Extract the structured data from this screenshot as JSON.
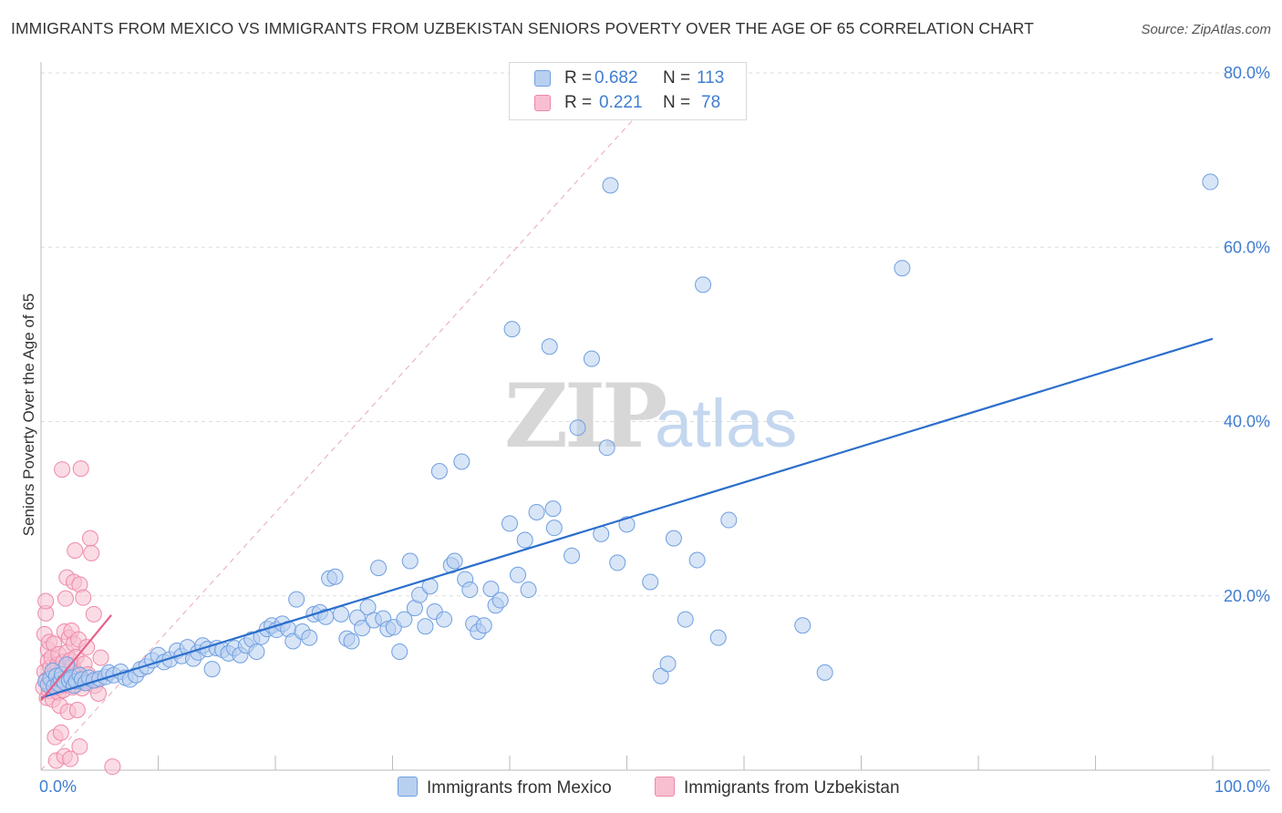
{
  "header": {
    "title": "IMMIGRANTS FROM MEXICO VS IMMIGRANTS FROM UZBEKISTAN SENIORS POVERTY OVER THE AGE OF 65 CORRELATION CHART",
    "source": "Source: ZipAtlas.com"
  },
  "legend": {
    "r_label": "R =",
    "n_label": "N =",
    "mexico": {
      "r": "0.682",
      "n": "113",
      "name": "Immigrants from Mexico"
    },
    "uzbekistan": {
      "r": "0.221",
      "n": "78",
      "name": "Immigrants from Uzbekistan"
    }
  },
  "watermark": {
    "zip": "ZIP",
    "atlas": "atlas"
  },
  "colors": {
    "mexico_fill": "#b8d0f0",
    "mexico_stroke": "#6f9fe0",
    "mexico_line": "#2c6fcc",
    "uzbek_fill": "#f8bfd0",
    "uzbek_stroke": "#ee8aaa",
    "uzbek_line": "#e8608a",
    "tick_label": "#3f7dd1",
    "grid": "#dddddd"
  },
  "chart_data": {
    "type": "scatter",
    "xlabel": "",
    "ylabel": "Seniors Poverty Over the Age of 65",
    "xlim": [
      0,
      100
    ],
    "ylim": [
      0,
      80
    ],
    "x_tick_labels": [
      "0.0%",
      "100.0%"
    ],
    "y_ticks": [
      20,
      40,
      60,
      80
    ],
    "y_tick_labels": [
      "20.0%",
      "40.0%",
      "60.0%",
      "80.0%"
    ],
    "grid": true,
    "series": [
      {
        "name": "Immigrants from Mexico",
        "trend": {
          "x": [
            0,
            100
          ],
          "y": [
            8.3,
            49.5
          ]
        },
        "points": [
          [
            0.4,
            10.2
          ],
          [
            0.6,
            9.8
          ],
          [
            0.8,
            10.5
          ],
          [
            1.0,
            11.4
          ],
          [
            1.1,
            9.6
          ],
          [
            1.3,
            10.8
          ],
          [
            1.5,
            9.9
          ],
          [
            1.7,
            10.4
          ],
          [
            1.8,
            11.0
          ],
          [
            2.0,
            10.1
          ],
          [
            2.2,
            12.1
          ],
          [
            2.4,
            10.3
          ],
          [
            2.6,
            10.6
          ],
          [
            2.8,
            9.7
          ],
          [
            3.0,
            10.2
          ],
          [
            3.3,
            10.9
          ],
          [
            3.5,
            10.4
          ],
          [
            3.8,
            10.0
          ],
          [
            4.1,
            10.6
          ],
          [
            4.5,
            10.3
          ],
          [
            5.0,
            10.5
          ],
          [
            5.5,
            10.7
          ],
          [
            5.8,
            11.2
          ],
          [
            6.2,
            10.9
          ],
          [
            6.8,
            11.3
          ],
          [
            7.2,
            10.6
          ],
          [
            7.6,
            10.4
          ],
          [
            8.1,
            10.9
          ],
          [
            8.5,
            11.6
          ],
          [
            9.0,
            11.9
          ],
          [
            9.5,
            12.6
          ],
          [
            10.0,
            13.2
          ],
          [
            10.5,
            12.4
          ],
          [
            11.0,
            12.7
          ],
          [
            11.6,
            13.7
          ],
          [
            12.0,
            13.1
          ],
          [
            12.5,
            14.1
          ],
          [
            13.0,
            12.8
          ],
          [
            13.4,
            13.5
          ],
          [
            13.8,
            14.3
          ],
          [
            14.2,
            13.9
          ],
          [
            14.6,
            11.6
          ],
          [
            15.0,
            14.0
          ],
          [
            15.5,
            13.8
          ],
          [
            16.0,
            13.4
          ],
          [
            16.5,
            14.0
          ],
          [
            17.0,
            13.2
          ],
          [
            17.5,
            14.3
          ],
          [
            18.0,
            15.0
          ],
          [
            18.4,
            13.6
          ],
          [
            18.8,
            15.3
          ],
          [
            19.3,
            16.2
          ],
          [
            19.7,
            16.6
          ],
          [
            20.1,
            16.1
          ],
          [
            20.6,
            16.8
          ],
          [
            21.1,
            16.2
          ],
          [
            21.5,
            14.8
          ],
          [
            21.8,
            19.6
          ],
          [
            22.3,
            15.9
          ],
          [
            22.9,
            15.2
          ],
          [
            23.3,
            17.9
          ],
          [
            23.8,
            18.1
          ],
          [
            24.3,
            17.6
          ],
          [
            24.6,
            22.0
          ],
          [
            25.1,
            22.2
          ],
          [
            25.6,
            17.9
          ],
          [
            26.1,
            15.1
          ],
          [
            26.5,
            14.8
          ],
          [
            27.0,
            17.5
          ],
          [
            27.4,
            16.3
          ],
          [
            27.9,
            18.7
          ],
          [
            28.4,
            17.2
          ],
          [
            28.8,
            23.2
          ],
          [
            29.2,
            17.4
          ],
          [
            29.6,
            16.2
          ],
          [
            30.1,
            16.4
          ],
          [
            30.6,
            13.6
          ],
          [
            31.0,
            17.3
          ],
          [
            31.5,
            24.0
          ],
          [
            31.9,
            18.6
          ],
          [
            32.3,
            20.1
          ],
          [
            32.8,
            16.5
          ],
          [
            33.2,
            21.1
          ],
          [
            33.6,
            18.2
          ],
          [
            34.0,
            34.3
          ],
          [
            34.4,
            17.3
          ],
          [
            35.0,
            23.5
          ],
          [
            35.3,
            24.0
          ],
          [
            35.9,
            35.4
          ],
          [
            36.2,
            21.9
          ],
          [
            36.6,
            20.7
          ],
          [
            36.9,
            16.8
          ],
          [
            37.3,
            15.9
          ],
          [
            37.8,
            16.6
          ],
          [
            38.4,
            20.8
          ],
          [
            38.8,
            18.9
          ],
          [
            39.2,
            19.5
          ],
          [
            40.0,
            28.3
          ],
          [
            40.2,
            50.6
          ],
          [
            40.7,
            22.4
          ],
          [
            41.3,
            26.4
          ],
          [
            41.6,
            20.7
          ],
          [
            42.3,
            29.6
          ],
          [
            43.4,
            48.6
          ],
          [
            43.7,
            30.0
          ],
          [
            43.8,
            27.8
          ],
          [
            45.3,
            24.6
          ],
          [
            45.8,
            39.3
          ],
          [
            47.0,
            47.2
          ],
          [
            47.8,
            27.1
          ],
          [
            48.3,
            37.0
          ],
          [
            48.6,
            67.1
          ],
          [
            49.2,
            23.8
          ],
          [
            50.0,
            28.2
          ],
          [
            52.0,
            21.6
          ],
          [
            52.9,
            10.8
          ],
          [
            53.5,
            12.2
          ],
          [
            54.0,
            26.6
          ],
          [
            55.0,
            17.3
          ],
          [
            56.0,
            24.1
          ],
          [
            56.5,
            55.7
          ],
          [
            57.8,
            15.2
          ],
          [
            58.7,
            28.7
          ],
          [
            65.0,
            16.6
          ],
          [
            66.9,
            11.2
          ],
          [
            73.5,
            57.6
          ],
          [
            99.8,
            67.5
          ]
        ]
      },
      {
        "name": "Immigrants from Uzbekistan",
        "trend": {
          "x": [
            0,
            6.0
          ],
          "y": [
            8.0,
            17.8
          ]
        },
        "points": [
          [
            0.2,
            9.5
          ],
          [
            0.3,
            11.3
          ],
          [
            0.3,
            15.6
          ],
          [
            0.4,
            18.0
          ],
          [
            0.4,
            19.4
          ],
          [
            0.5,
            8.3
          ],
          [
            0.5,
            10.4
          ],
          [
            0.6,
            12.5
          ],
          [
            0.6,
            13.8
          ],
          [
            0.7,
            9.1
          ],
          [
            0.7,
            14.7
          ],
          [
            0.8,
            11.8
          ],
          [
            0.8,
            9.7
          ],
          [
            0.9,
            10.6
          ],
          [
            0.9,
            12.9
          ],
          [
            1.0,
            9.9
          ],
          [
            1.0,
            8.1
          ],
          [
            1.1,
            14.5
          ],
          [
            1.1,
            10.9
          ],
          [
            1.2,
            11.6
          ],
          [
            1.2,
            3.8
          ],
          [
            1.3,
            1.1
          ],
          [
            1.3,
            9.4
          ],
          [
            1.4,
            12.1
          ],
          [
            1.4,
            10.3
          ],
          [
            1.5,
            8.9
          ],
          [
            1.5,
            13.3
          ],
          [
            1.6,
            9.6
          ],
          [
            1.6,
            7.4
          ],
          [
            1.7,
            4.3
          ],
          [
            1.7,
            10.1
          ],
          [
            1.8,
            34.5
          ],
          [
            1.8,
            11.4
          ],
          [
            1.9,
            12.4
          ],
          [
            1.9,
            9.2
          ],
          [
            2.0,
            1.6
          ],
          [
            2.0,
            15.9
          ],
          [
            2.1,
            19.7
          ],
          [
            2.1,
            9.8
          ],
          [
            2.2,
            13.5
          ],
          [
            2.2,
            22.1
          ],
          [
            2.3,
            6.7
          ],
          [
            2.3,
            10.7
          ],
          [
            2.4,
            11.3
          ],
          [
            2.4,
            15.2
          ],
          [
            2.5,
            12.6
          ],
          [
            2.5,
            1.3
          ],
          [
            2.6,
            10.4
          ],
          [
            2.6,
            16.0
          ],
          [
            2.7,
            9.5
          ],
          [
            2.7,
            12.0
          ],
          [
            2.8,
            14.5
          ],
          [
            2.8,
            21.6
          ],
          [
            2.9,
            25.2
          ],
          [
            2.9,
            10.9
          ],
          [
            3.0,
            9.8
          ],
          [
            3.0,
            13.0
          ],
          [
            3.1,
            6.9
          ],
          [
            3.1,
            11.1
          ],
          [
            3.2,
            15.0
          ],
          [
            3.3,
            2.7
          ],
          [
            3.3,
            21.3
          ],
          [
            3.4,
            10.5
          ],
          [
            3.4,
            34.6
          ],
          [
            3.5,
            9.4
          ],
          [
            3.6,
            19.8
          ],
          [
            3.7,
            12.2
          ],
          [
            3.8,
            10.2
          ],
          [
            3.9,
            14.1
          ],
          [
            4.0,
            11.0
          ],
          [
            4.2,
            26.6
          ],
          [
            4.3,
            24.9
          ],
          [
            4.5,
            17.9
          ],
          [
            4.6,
            9.7
          ],
          [
            4.7,
            10.3
          ],
          [
            4.9,
            8.8
          ],
          [
            5.1,
            12.9
          ],
          [
            6.1,
            0.4
          ]
        ]
      }
    ]
  }
}
